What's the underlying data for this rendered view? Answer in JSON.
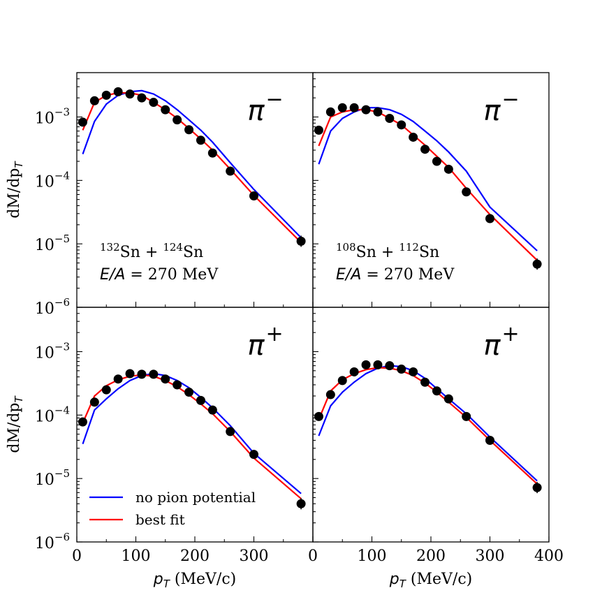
{
  "chart_data": {
    "type": "line",
    "layout": "2x2 panel grid, shared axes",
    "ylabel": "dM/dp",
    "ylabel_sub": "T",
    "xlabel": "p",
    "xlabel_sub": "T",
    "xlabel_unit": " (MeV/c)",
    "xlim": [
      0,
      400
    ],
    "ylim": [
      1e-06,
      0.005
    ],
    "yscale": "log",
    "x_ticks": [
      0,
      100,
      200,
      300,
      400
    ],
    "x_tick_labels_left": [
      "0",
      "100",
      "200",
      "300"
    ],
    "x_tick_labels_right": [
      "0",
      "100",
      "200",
      "300",
      "400"
    ],
    "y_tick_exponents": [
      -6,
      -5,
      -4,
      -3
    ],
    "y_tick_base": "10",
    "legend": {
      "placement": "lower-left of bottom-left panel",
      "entries": [
        {
          "label": "no pion potential",
          "color": "#0000ff"
        },
        {
          "label": "best fit",
          "color": "#ff0000"
        }
      ]
    },
    "colors": {
      "no_potential": "#0000ff",
      "best_fit": "#ff0000",
      "data": "#000000"
    },
    "panels": [
      {
        "id": "top-left",
        "particle": "π",
        "charge": "−",
        "system_line": {
          "a1": "132",
          "e1": "Sn + ",
          "a2": "124",
          "e2": "Sn"
        },
        "energy_label": {
          "var": "E/A",
          "rest": " = 270 MeV"
        },
        "series": [
          {
            "name": "no pion potential",
            "x": [
              10,
              30,
              50,
              70,
              90,
              110,
              130,
              150,
              170,
              190,
              210,
              230,
              260,
              300,
              380
            ],
            "y": [
              0.00026,
              0.00085,
              0.0016,
              0.0022,
              0.0025,
              0.0026,
              0.0023,
              0.0018,
              0.0013,
              0.0009,
              0.00062,
              0.0004,
              0.00019,
              7.2e-05,
              1.25e-05
            ]
          },
          {
            "name": "best fit",
            "x": [
              10,
              30,
              50,
              70,
              90,
              110,
              130,
              150,
              170,
              190,
              210,
              230,
              260,
              300,
              380
            ],
            "y": [
              0.00062,
              0.0017,
              0.0022,
              0.0024,
              0.0024,
              0.0022,
              0.0017,
              0.0013,
              0.00095,
              0.00066,
              0.00045,
              0.0003,
              0.00015,
              5.8e-05,
              1.05e-05
            ]
          },
          {
            "name": "data",
            "x": [
              10,
              30,
              50,
              70,
              90,
              110,
              130,
              150,
              170,
              190,
              210,
              230,
              260,
              300,
              380
            ],
            "y": [
              0.00083,
              0.0018,
              0.0022,
              0.0025,
              0.0023,
              0.002,
              0.0017,
              0.0013,
              0.0009,
              0.00063,
              0.00043,
              0.00027,
              0.00014,
              5.7e-05,
              1.1e-05
            ]
          }
        ]
      },
      {
        "id": "top-right",
        "particle": "π",
        "charge": "−",
        "system_line": {
          "a1": "108",
          "e1": "Sn + ",
          "a2": "112",
          "e2": "Sn"
        },
        "energy_label": {
          "var": "E/A",
          "rest": " = 270 MeV"
        },
        "series": [
          {
            "name": "no pion potential",
            "x": [
              10,
              30,
              50,
              70,
              90,
              110,
              130,
              150,
              170,
              190,
              210,
              230,
              260,
              300,
              380
            ],
            "y": [
              0.00018,
              0.0006,
              0.00095,
              0.0012,
              0.0014,
              0.0014,
              0.0013,
              0.0011,
              0.00085,
              0.0006,
              0.00042,
              0.00028,
              0.00014,
              3.8e-05,
              7.8e-06
            ]
          },
          {
            "name": "best fit",
            "x": [
              10,
              30,
              50,
              70,
              90,
              110,
              130,
              150,
              170,
              190,
              210,
              230,
              260,
              300,
              380
            ],
            "y": [
              0.00035,
              0.001,
              0.0012,
              0.0013,
              0.0013,
              0.0012,
              0.00095,
              0.00075,
              0.00052,
              0.00036,
              0.00024,
              0.00016,
              7.5e-05,
              2.9e-05,
              5.5e-06
            ]
          },
          {
            "name": "data",
            "x": [
              10,
              30,
              50,
              70,
              90,
              110,
              130,
              150,
              170,
              190,
              210,
              230,
              260,
              300,
              380
            ],
            "y": [
              0.00062,
              0.0012,
              0.0014,
              0.0014,
              0.0013,
              0.0012,
              0.00095,
              0.00075,
              0.00048,
              0.00031,
              0.0002,
              0.00015,
              6.6e-05,
              2.5e-05,
              4.8e-06
            ]
          }
        ]
      },
      {
        "id": "bottom-left",
        "particle": "π",
        "charge": "+",
        "series": [
          {
            "name": "no pion potential",
            "x": [
              10,
              30,
              50,
              70,
              90,
              110,
              130,
              150,
              170,
              190,
              210,
              230,
              260,
              300,
              380
            ],
            "y": [
              3.5e-05,
              0.00012,
              0.00018,
              0.00026,
              0.00035,
              0.00042,
              0.00045,
              0.00042,
              0.00035,
              0.00027,
              0.00019,
              0.00013,
              6.8e-05,
              2.5e-05,
              5.8e-06
            ]
          },
          {
            "name": "best fit",
            "x": [
              10,
              30,
              50,
              70,
              90,
              110,
              130,
              150,
              170,
              190,
              210,
              230,
              260,
              300,
              380
            ],
            "y": [
              7.5e-05,
              0.0002,
              0.00029,
              0.00036,
              0.00041,
              0.00043,
              0.00041,
              0.00035,
              0.00028,
              0.00021,
              0.00015,
              0.000105,
              5.5e-05,
              2.1e-05,
              4.8e-06
            ]
          },
          {
            "name": "data",
            "x": [
              10,
              30,
              50,
              70,
              90,
              110,
              130,
              150,
              170,
              190,
              210,
              230,
              260,
              300,
              380
            ],
            "y": [
              7.8e-05,
              0.00016,
              0.00025,
              0.00037,
              0.00045,
              0.00044,
              0.00044,
              0.00037,
              0.0003,
              0.00023,
              0.00017,
              0.00012,
              5.5e-05,
              2.4e-05,
              4e-06
            ]
          }
        ]
      },
      {
        "id": "bottom-right",
        "particle": "π",
        "charge": "+",
        "series": [
          {
            "name": "no pion potential",
            "x": [
              10,
              30,
              50,
              70,
              90,
              110,
              130,
              150,
              170,
              190,
              210,
              230,
              260,
              300,
              380
            ],
            "y": [
              4.7e-05,
              0.00014,
              0.00023,
              0.00033,
              0.00045,
              0.00055,
              0.0006,
              0.00058,
              0.0005,
              0.00038,
              0.00026,
              0.00018,
              0.000105,
              4.5e-05,
              9.2e-06
            ]
          },
          {
            "name": "best fit",
            "x": [
              10,
              30,
              50,
              70,
              90,
              110,
              130,
              150,
              170,
              190,
              210,
              230,
              260,
              300,
              380
            ],
            "y": [
              8.5e-05,
              0.00024,
              0.00036,
              0.00045,
              0.00052,
              0.00056,
              0.00055,
              0.0005,
              0.00042,
              0.00032,
              0.00023,
              0.00016,
              9.2e-05,
              4e-05,
              8.2e-06
            ]
          },
          {
            "name": "data",
            "x": [
              10,
              30,
              50,
              70,
              90,
              110,
              130,
              150,
              170,
              190,
              210,
              230,
              260,
              300,
              380
            ],
            "y": [
              9.5e-05,
              0.00021,
              0.00035,
              0.00048,
              0.00062,
              0.00062,
              0.0006,
              0.00053,
              0.00048,
              0.00033,
              0.00024,
              0.00018,
              9.5e-05,
              4e-05,
              7.2e-06
            ]
          }
        ]
      }
    ]
  }
}
